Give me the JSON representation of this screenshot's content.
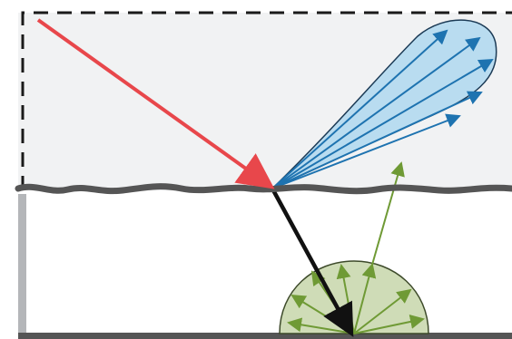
{
  "diagram": {
    "description_free": true,
    "colors": {
      "upper_medium_fill": "#f1f2f3",
      "boundary_dash": "#1a1a1a",
      "rough_surface": "#555555",
      "left_side_wall": "#b4b6b9",
      "floor_line": "#555555",
      "incident_ray": "#e8474b",
      "refracted_ray": "#111111",
      "specular_lobe_fill": "#b9dcf0",
      "specular_lobe_stroke": "#1b3a55",
      "specular_rays": "#1e73b0",
      "diffuse_lobe_fill": "#cfdcb7",
      "diffuse_lobe_stroke": "#3d4a2a",
      "diffuse_rays": "#6f9a35"
    },
    "icons": {
      "incident_arrowhead": "triangle",
      "specular_arrowheads": "triangle",
      "diffuse_arrowheads": "triangle",
      "refracted_arrowhead": "triangle"
    },
    "counts": {
      "specular_rays": 5,
      "diffuse_rays_inside_lobe": 7,
      "diffuse_transmitted_rays": 1
    }
  }
}
